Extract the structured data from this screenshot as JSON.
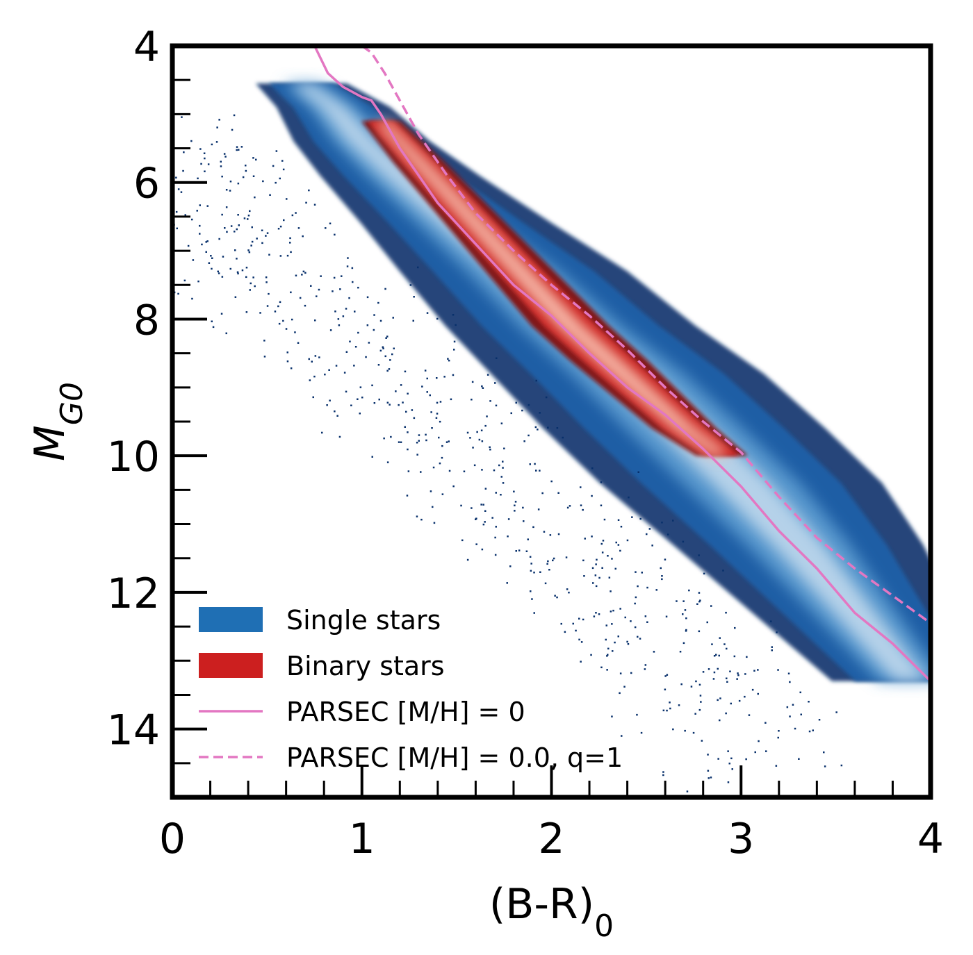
{
  "chart_data": {
    "type": "heatmap",
    "title": "",
    "xlabel": {
      "main": "(B-R)",
      "sub": "0"
    },
    "ylabel": {
      "main": "M",
      "sub": "G0"
    },
    "xlim": [
      0,
      4
    ],
    "ylim": [
      15,
      4
    ],
    "y_inverted": true,
    "x_ticks": [
      0,
      1,
      2,
      3,
      4
    ],
    "x_tick_labels": [
      "0",
      "1",
      "2",
      "3",
      "4"
    ],
    "y_ticks": [
      4,
      6,
      8,
      10,
      12,
      14
    ],
    "y_tick_labels": [
      "4",
      "6",
      "8",
      "10",
      "12",
      "14"
    ],
    "x_minor_step": 0.2,
    "y_minor_step": 0.5,
    "grid": false,
    "legend_position": "lower-left",
    "series": [
      {
        "name": "Single stars",
        "kind": "density",
        "color": "#1f6fb4",
        "ridge": [
          [
            0.68,
            4.55
          ],
          [
            0.85,
            4.9
          ],
          [
            1.0,
            5.4
          ],
          [
            1.2,
            5.9
          ],
          [
            1.5,
            6.6
          ],
          [
            1.8,
            7.3
          ],
          [
            2.1,
            8.1
          ],
          [
            2.4,
            8.8
          ],
          [
            2.7,
            9.6
          ],
          [
            3.0,
            10.4
          ],
          [
            3.3,
            11.3
          ],
          [
            3.6,
            12.3
          ],
          [
            3.9,
            13.3
          ]
        ],
        "width": [
          0.2,
          0.25,
          0.3,
          0.35,
          0.42,
          0.5,
          0.55,
          0.6,
          0.62,
          0.62,
          0.55,
          0.45,
          0.35
        ]
      },
      {
        "name": "Binary stars",
        "kind": "density",
        "color": "#cc1f1f",
        "ridge": [
          [
            1.1,
            5.1
          ],
          [
            1.3,
            5.7
          ],
          [
            1.5,
            6.3
          ],
          [
            1.7,
            6.9
          ],
          [
            1.9,
            7.5
          ],
          [
            2.1,
            8.1
          ],
          [
            2.3,
            8.6
          ],
          [
            2.5,
            9.1
          ],
          [
            2.7,
            9.6
          ],
          [
            2.9,
            10.0
          ]
        ],
        "width": [
          0.12,
          0.16,
          0.18,
          0.2,
          0.22,
          0.24,
          0.24,
          0.22,
          0.2,
          0.16
        ]
      },
      {
        "name": "PARSEC [M/H] = 0",
        "kind": "line",
        "style": "solid",
        "color": "#e377c2",
        "points": [
          [
            0.75,
            4.0
          ],
          [
            0.82,
            4.4
          ],
          [
            0.9,
            4.6
          ],
          [
            1.0,
            4.75
          ],
          [
            1.05,
            4.8
          ],
          [
            1.1,
            5.0
          ],
          [
            1.2,
            5.5
          ],
          [
            1.3,
            5.9
          ],
          [
            1.4,
            6.3
          ],
          [
            1.6,
            6.9
          ],
          [
            1.8,
            7.5
          ],
          [
            2.0,
            7.95
          ],
          [
            2.2,
            8.5
          ],
          [
            2.4,
            9.0
          ],
          [
            2.6,
            9.4
          ],
          [
            2.8,
            9.9
          ],
          [
            3.0,
            10.45
          ],
          [
            3.2,
            11.1
          ],
          [
            3.4,
            11.65
          ],
          [
            3.6,
            12.3
          ],
          [
            3.8,
            12.75
          ],
          [
            4.0,
            13.3
          ]
        ]
      },
      {
        "name": "PARSEC [M/H] = 0.0, q=1",
        "kind": "line",
        "style": "dashed",
        "color": "#e377c2",
        "points": [
          [
            1.0,
            4.0
          ],
          [
            1.05,
            4.1
          ],
          [
            1.12,
            4.4
          ],
          [
            1.2,
            4.8
          ],
          [
            1.3,
            5.3
          ],
          [
            1.45,
            5.9
          ],
          [
            1.6,
            6.45
          ],
          [
            1.8,
            7.0
          ],
          [
            2.0,
            7.5
          ],
          [
            2.2,
            7.95
          ],
          [
            2.4,
            8.45
          ],
          [
            2.6,
            9.0
          ],
          [
            2.8,
            9.5
          ],
          [
            3.0,
            9.95
          ],
          [
            3.2,
            10.6
          ],
          [
            3.4,
            11.2
          ],
          [
            3.6,
            11.65
          ],
          [
            3.8,
            12.05
          ],
          [
            4.0,
            12.45
          ]
        ]
      }
    ]
  }
}
